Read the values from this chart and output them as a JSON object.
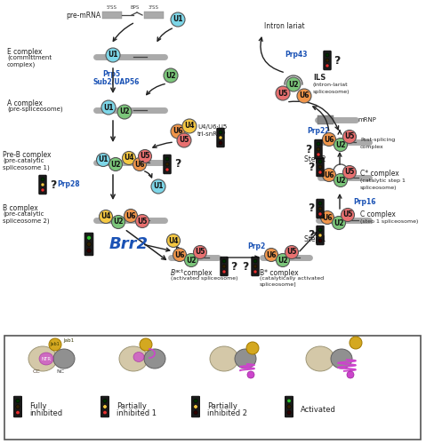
{
  "bg_color": "#ffffff",
  "snrnp_colors": {
    "U1": "#7dd6e8",
    "U2": "#7bc67a",
    "U4": "#f5c842",
    "U5": "#e87070",
    "U6": "#f0954a",
    "U2_ils": "#f5c842"
  },
  "traffic_light": {
    "red": "#e83030",
    "yellow": "#f5c842",
    "green": "#30c030"
  },
  "text_colors": {
    "label": "#222222",
    "helicase": "#1a52b5"
  },
  "ntr_color": "#cc44cc",
  "jab1_color": "#d4a820"
}
